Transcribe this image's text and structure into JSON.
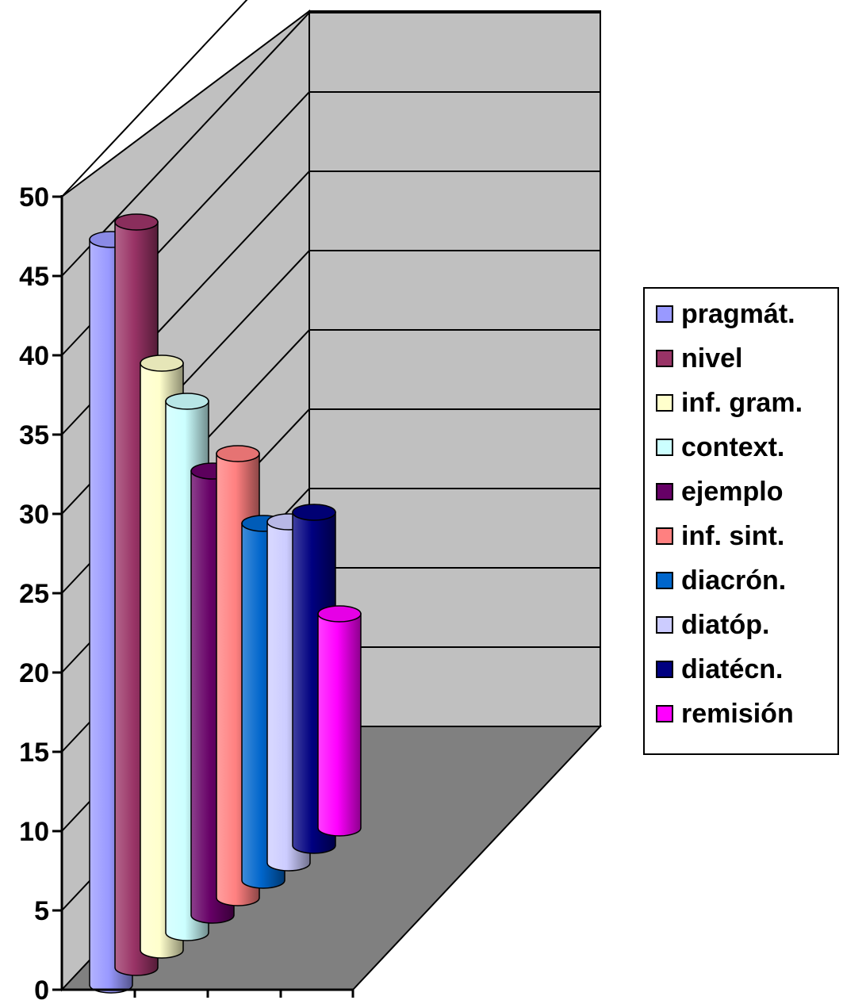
{
  "chart_data": {
    "type": "bar",
    "style": "3d-cylinder",
    "series": [
      {
        "name": "pragmát.",
        "value": 47,
        "color": "#9999FF"
      },
      {
        "name": "nivel",
        "value": 47,
        "color": "#993366"
      },
      {
        "name": "inf. gram.",
        "value": 37,
        "color": "#FFFFCC"
      },
      {
        "name": "context.",
        "value": 33.5,
        "color": "#CCFFFF"
      },
      {
        "name": "ejemplo",
        "value": 28,
        "color": "#660066"
      },
      {
        "name": "inf. sint.",
        "value": 28,
        "color": "#FF8080"
      },
      {
        "name": "diacrón.",
        "value": 22.5,
        "color": "#0066CC"
      },
      {
        "name": "diatóp.",
        "value": 21.5,
        "color": "#CCCCFF"
      },
      {
        "name": "diatécn.",
        "value": 21,
        "color": "#000080"
      },
      {
        "name": "remisión",
        "value": 13.5,
        "color": "#FF00FF"
      }
    ],
    "yticks": [
      "0",
      "5",
      "10",
      "15",
      "20",
      "25",
      "30",
      "35",
      "40",
      "45",
      "50"
    ],
    "ylim": [
      0,
      50
    ],
    "grid": true,
    "legend": "right",
    "wall_color": "#C0C0C0",
    "floor_color": "#808080"
  }
}
